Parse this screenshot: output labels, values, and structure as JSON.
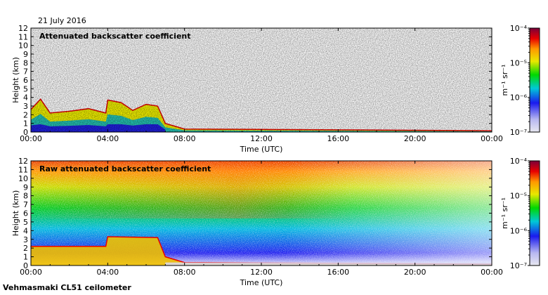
{
  "date_label": "21 July 2016",
  "instrument_label": "Vehmasmaki CL51 ceilometer",
  "colors": {
    "palette": [
      "#e8e8f0",
      "#b8b8f0",
      "#1a1aee",
      "#00c8d8",
      "#00d800",
      "#e8e800",
      "#ff9800",
      "#e80000",
      "#7a003a"
    ]
  },
  "chart_data": [
    {
      "type": "heatmap",
      "title": "Attenuated backscatter coefficient",
      "xlabel": "Time (UTC)",
      "ylabel": "Height (km)",
      "x_ticks": [
        "00:00",
        "04:00",
        "08:00",
        "12:00",
        "16:00",
        "20:00",
        "00:00"
      ],
      "y_ticks": [
        "0",
        "1",
        "2",
        "3",
        "4",
        "5",
        "6",
        "7",
        "8",
        "9",
        "10",
        "11",
        "12"
      ],
      "xlim": [
        0,
        24
      ],
      "ylim": [
        0,
        12
      ],
      "colorbar": {
        "label": "m⁻¹ sr⁻¹",
        "scale": "log",
        "ticks": [
          "10⁻⁷",
          "10⁻⁶",
          "10⁻⁵",
          "10⁻⁴"
        ]
      },
      "layer_top_km": [
        [
          0,
          2.6
        ],
        [
          0.5,
          3.8
        ],
        [
          1.0,
          2.2
        ],
        [
          2.0,
          2.4
        ],
        [
          3.0,
          2.7
        ],
        [
          3.9,
          2.2
        ],
        [
          4.0,
          3.7
        ],
        [
          4.7,
          3.4
        ],
        [
          5.3,
          2.5
        ],
        [
          6.0,
          3.2
        ],
        [
          6.6,
          3.0
        ],
        [
          7.0,
          1.0
        ],
        [
          8.0,
          0.35
        ],
        [
          12.0,
          0.3
        ],
        [
          16.0,
          0.25
        ],
        [
          20.0,
          0.2
        ],
        [
          24.0,
          0.15
        ]
      ]
    },
    {
      "type": "heatmap",
      "title": "Raw attenuated backscatter coefficient",
      "xlabel": "Time (UTC)",
      "ylabel": "Height (km)",
      "x_ticks": [
        "00:00",
        "04:00",
        "08:00",
        "12:00",
        "16:00",
        "20:00",
        "00:00"
      ],
      "y_ticks": [
        "0",
        "1",
        "2",
        "3",
        "4",
        "5",
        "6",
        "7",
        "8",
        "9",
        "10",
        "11",
        "12"
      ],
      "xlim": [
        0,
        24
      ],
      "ylim": [
        0,
        12
      ],
      "colorbar": {
        "label": "m⁻¹ sr⁻¹",
        "scale": "log",
        "ticks": [
          "10⁻⁷",
          "10⁻⁶",
          "10⁻⁵",
          "10⁻⁴"
        ]
      },
      "layer_top_km": [
        [
          0,
          2.2
        ],
        [
          3.9,
          2.2
        ],
        [
          4.0,
          3.3
        ],
        [
          6.6,
          3.2
        ],
        [
          7.0,
          1.0
        ],
        [
          8.0,
          0.35
        ],
        [
          24.0,
          0.15
        ]
      ]
    }
  ]
}
